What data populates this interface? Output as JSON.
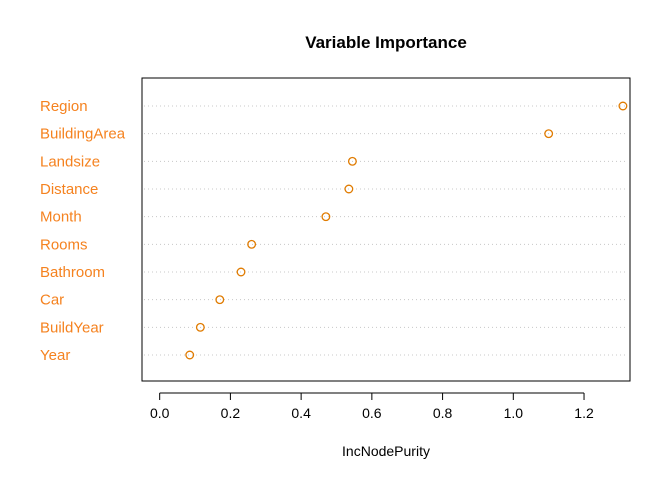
{
  "chart_data": {
    "type": "scatter",
    "title": "Variable Importance",
    "xlabel": "IncNodePurity",
    "ylabel": "",
    "xlim": [
      -0.05,
      1.33
    ],
    "xticks": [
      0.0,
      0.2,
      0.4,
      0.6,
      0.8,
      1.0,
      1.2
    ],
    "xtick_labels": [
      "0.0",
      "0.2",
      "0.4",
      "0.6",
      "0.8",
      "1.0",
      "1.2"
    ],
    "categories": [
      "Region",
      "BuildingArea",
      "Landsize",
      "Distance",
      "Month",
      "Rooms",
      "Bathroom",
      "Car",
      "BuildYear",
      "Year"
    ],
    "values": [
      1.31,
      1.1,
      0.545,
      0.535,
      0.47,
      0.26,
      0.23,
      0.17,
      0.115,
      0.085
    ],
    "grid": "dotted horizontal",
    "legend": "none",
    "marker": "open-circle",
    "colors": {
      "points": "#e07b00",
      "labels": "#f5821f",
      "grid": "#c8c8c8",
      "axis": "#000000"
    }
  }
}
